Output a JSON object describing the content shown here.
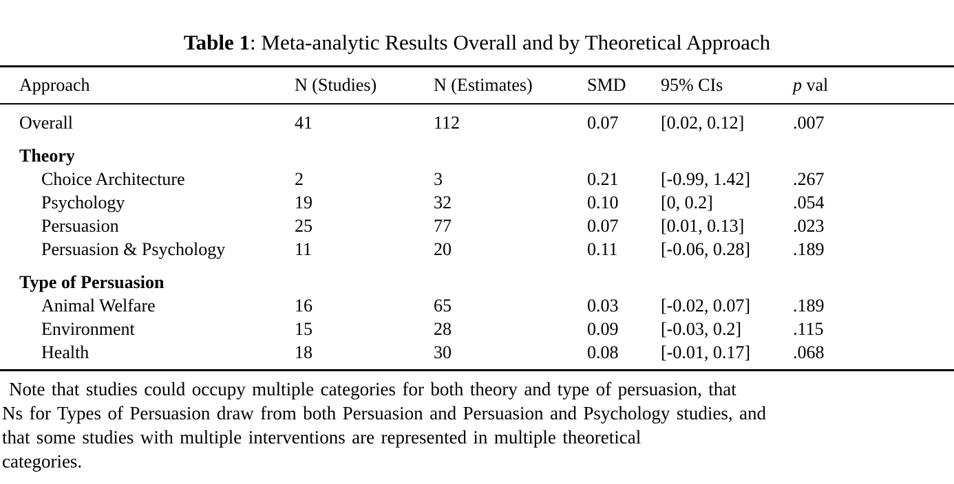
{
  "page": {
    "background_color": "#ffffff",
    "text_color": "#000000",
    "rule_color": "#000000"
  },
  "title": {
    "bold": "Table 1",
    "rest": ": Meta-analytic Results Overall and by Theoretical Approach"
  },
  "table": {
    "header": {
      "approach": "Approach",
      "n_studies": "N (Studies)",
      "n_estimates": "N (Estimates)",
      "smd": "SMD",
      "ci": "95% CIs",
      "p_symbol": "p",
      "p_rest": " val"
    },
    "rows": [
      {
        "type": "data",
        "label": "Overall",
        "n_studies": "41",
        "n_estimates": "112",
        "smd": "0.07",
        "ci": "[0.02, 0.12]",
        "p": ".007"
      },
      {
        "type": "section",
        "label": "Theory"
      },
      {
        "type": "data",
        "label": "Choice Architecture",
        "n_studies": "2",
        "n_estimates": "3",
        "smd": "0.21",
        "ci": "[-0.99, 1.42]",
        "p": ".267"
      },
      {
        "type": "data",
        "label": "Psychology",
        "n_studies": "19",
        "n_estimates": "32",
        "smd": "0.10",
        "ci": "[0, 0.2]",
        "p": ".054"
      },
      {
        "type": "data",
        "label": "Persuasion",
        "n_studies": "25",
        "n_estimates": "77",
        "smd": "0.07",
        "ci": "[0.01, 0.13]",
        "p": ".023"
      },
      {
        "type": "data",
        "label": "Persuasion & Psychology",
        "n_studies": "11",
        "n_estimates": "20",
        "smd": "0.11",
        "ci": "[-0.06, 0.28]",
        "p": ".189"
      },
      {
        "type": "section",
        "label": "Type of Persuasion"
      },
      {
        "type": "data",
        "label": "Animal Welfare",
        "n_studies": "16",
        "n_estimates": "65",
        "smd": "0.03",
        "ci": "[-0.02, 0.07]",
        "p": ".189"
      },
      {
        "type": "data",
        "label": "Environment",
        "n_studies": "15",
        "n_estimates": "28",
        "smd": "0.09",
        "ci": "[-0.03, 0.2]",
        "p": ".115"
      },
      {
        "type": "data",
        "label": "Health",
        "n_studies": "18",
        "n_estimates": "30",
        "smd": "0.08",
        "ci": "[-0.01, 0.17]",
        "p": ".068"
      }
    ]
  },
  "note": {
    "lines": [
      "Note that studies could occupy multiple categories for both theory and type of persuasion, that",
      "Ns for Types of Persuasion draw from both Persuasion and Persuasion and Psychology studies, and",
      "that some studies with multiple interventions are represented in multiple theoretical",
      "categories."
    ]
  }
}
